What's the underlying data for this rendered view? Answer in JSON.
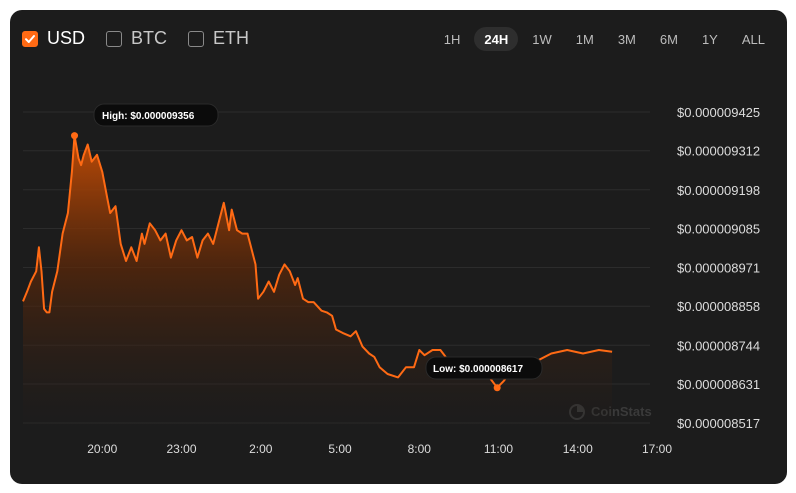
{
  "currencies": [
    {
      "label": "USD",
      "checked": true
    },
    {
      "label": "BTC",
      "checked": false
    },
    {
      "label": "ETH",
      "checked": false
    }
  ],
  "ranges": [
    {
      "label": "1H",
      "active": false
    },
    {
      "label": "24H",
      "active": true
    },
    {
      "label": "1W",
      "active": false
    },
    {
      "label": "1M",
      "active": false
    },
    {
      "label": "3M",
      "active": false
    },
    {
      "label": "6M",
      "active": false
    },
    {
      "label": "1Y",
      "active": false
    },
    {
      "label": "ALL",
      "active": false
    }
  ],
  "tooltips": {
    "high": "High: $0.000009356",
    "low": "Low: $0.000008617"
  },
  "watermark": "CoinStats",
  "colors": {
    "accent": "#ff6a14",
    "background": "#1c1c1c",
    "grid": "#2c2c2c"
  },
  "chart_data": {
    "type": "area",
    "series": [
      {
        "points": [
          [
            17.0,
            8.872
          ],
          [
            17.15,
            8.9
          ],
          [
            17.3,
            8.93
          ],
          [
            17.5,
            8.96
          ],
          [
            17.6,
            9.03
          ],
          [
            17.7,
            8.96
          ],
          [
            17.8,
            8.85
          ],
          [
            17.9,
            8.84
          ],
          [
            18.0,
            8.84
          ],
          [
            18.1,
            8.9
          ],
          [
            18.3,
            8.96
          ],
          [
            18.5,
            9.07
          ],
          [
            18.7,
            9.13
          ],
          [
            18.85,
            9.25
          ],
          [
            18.95,
            9.356
          ],
          [
            19.1,
            9.29
          ],
          [
            19.2,
            9.27
          ],
          [
            19.3,
            9.3
          ],
          [
            19.45,
            9.33
          ],
          [
            19.6,
            9.28
          ],
          [
            19.8,
            9.3
          ],
          [
            20.0,
            9.25
          ],
          [
            20.2,
            9.17
          ],
          [
            20.3,
            9.13
          ],
          [
            20.5,
            9.15
          ],
          [
            20.7,
            9.04
          ],
          [
            20.9,
            8.99
          ],
          [
            21.1,
            9.03
          ],
          [
            21.3,
            8.99
          ],
          [
            21.5,
            9.07
          ],
          [
            21.6,
            9.04
          ],
          [
            21.8,
            9.1
          ],
          [
            22.0,
            9.08
          ],
          [
            22.2,
            9.05
          ],
          [
            22.4,
            9.07
          ],
          [
            22.6,
            9.0
          ],
          [
            22.8,
            9.05
          ],
          [
            23.0,
            9.08
          ],
          [
            23.2,
            9.05
          ],
          [
            23.4,
            9.06
          ],
          [
            23.6,
            9.0
          ],
          [
            23.8,
            9.05
          ],
          [
            24.0,
            9.07
          ],
          [
            24.2,
            9.04
          ],
          [
            24.4,
            9.1
          ],
          [
            24.6,
            9.16
          ],
          [
            24.8,
            9.08
          ],
          [
            24.9,
            9.14
          ],
          [
            25.1,
            9.08
          ],
          [
            25.3,
            9.07
          ],
          [
            25.5,
            9.07
          ],
          [
            25.6,
            9.04
          ],
          [
            25.8,
            8.98
          ],
          [
            25.9,
            8.88
          ],
          [
            26.1,
            8.9
          ],
          [
            26.3,
            8.93
          ],
          [
            26.5,
            8.9
          ],
          [
            26.7,
            8.95
          ],
          [
            26.9,
            8.98
          ],
          [
            27.1,
            8.96
          ],
          [
            27.3,
            8.92
          ],
          [
            27.4,
            8.94
          ],
          [
            27.6,
            8.88
          ],
          [
            27.8,
            8.87
          ],
          [
            28.0,
            8.87
          ],
          [
            28.3,
            8.845
          ],
          [
            28.5,
            8.84
          ],
          [
            28.7,
            8.83
          ],
          [
            28.85,
            8.79
          ],
          [
            29.1,
            8.78
          ],
          [
            29.4,
            8.77
          ],
          [
            29.6,
            8.785
          ],
          [
            29.85,
            8.74
          ],
          [
            30.1,
            8.72
          ],
          [
            30.3,
            8.71
          ],
          [
            30.5,
            8.68
          ],
          [
            30.8,
            8.66
          ],
          [
            31.2,
            8.65
          ],
          [
            31.5,
            8.68
          ],
          [
            31.8,
            8.68
          ],
          [
            32.0,
            8.73
          ],
          [
            32.2,
            8.715
          ],
          [
            32.5,
            8.73
          ],
          [
            32.8,
            8.73
          ],
          [
            33.1,
            8.7
          ],
          [
            33.5,
            8.68
          ],
          [
            33.8,
            8.68
          ],
          [
            34.0,
            8.68
          ],
          [
            34.3,
            8.66
          ],
          [
            34.6,
            8.656
          ],
          [
            34.95,
            8.62
          ],
          [
            35.2,
            8.64
          ],
          [
            35.5,
            8.67
          ],
          [
            35.8,
            8.67
          ],
          [
            36.1,
            8.7
          ],
          [
            36.5,
            8.7
          ],
          [
            37.0,
            8.72
          ],
          [
            37.6,
            8.73
          ],
          [
            38.2,
            8.72
          ],
          [
            38.8,
            8.73
          ],
          [
            39.3,
            8.725
          ]
        ],
        "color": "#ff6a14"
      }
    ],
    "high": {
      "x": 18.95,
      "y": 9.356
    },
    "low": {
      "x": 34.95,
      "y": 8.62
    },
    "y_unit_scale": "1e-6",
    "x_ticks": [
      {
        "value": 20,
        "label": "20:00"
      },
      {
        "value": 23,
        "label": "23:00"
      },
      {
        "value": 26,
        "label": "2:00"
      },
      {
        "value": 29,
        "label": "5:00"
      },
      {
        "value": 32,
        "label": "8:00"
      },
      {
        "value": 35,
        "label": "11:00"
      },
      {
        "value": 38,
        "label": "14:00"
      },
      {
        "value": 41,
        "label": "17:00"
      }
    ],
    "y_ticks": [
      {
        "value": 9.425,
        "label": "$0.000009425"
      },
      {
        "value": 9.312,
        "label": "$0.000009312"
      },
      {
        "value": 9.198,
        "label": "$0.000009198"
      },
      {
        "value": 9.085,
        "label": "$0.000009085"
      },
      {
        "value": 8.971,
        "label": "$0.000008971"
      },
      {
        "value": 8.858,
        "label": "$0.000008858"
      },
      {
        "value": 8.744,
        "label": "$0.000008744"
      },
      {
        "value": 8.631,
        "label": "$0.000008631"
      },
      {
        "value": 8.517,
        "label": "$0.000008517"
      }
    ],
    "xlim": [
      17.0,
      41.0
    ],
    "ylim": [
      8.517,
      9.425
    ],
    "grid": true,
    "legend": "none"
  }
}
